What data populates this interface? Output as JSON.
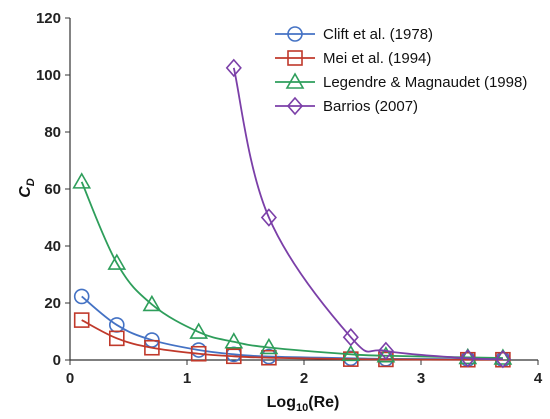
{
  "chart_data": {
    "type": "line",
    "title": "",
    "xlabel": {
      "main": "Log",
      "sub": "10",
      "rest": "(Re)"
    },
    "ylabel": {
      "main": "C",
      "sub": "D"
    },
    "xlim": [
      0,
      4
    ],
    "ylim": [
      0,
      120
    ],
    "xticks": [
      "0",
      "1",
      "2",
      "3",
      "4"
    ],
    "yticks": [
      "0",
      "20",
      "40",
      "60",
      "80",
      "100",
      "120"
    ],
    "grid": false,
    "legend_position": "top-right",
    "series": [
      {
        "name": "Clift et al. (1978)",
        "marker": "circle",
        "color": "#4472C4",
        "x": [
          0.1,
          0.4,
          0.7,
          1.1,
          1.4,
          1.7,
          2.4,
          2.7,
          3.4,
          3.7
        ],
        "y": [
          22.3,
          12.3,
          7.0,
          3.5,
          2.0,
          1.2,
          0.6,
          0.4,
          0.3,
          0.2
        ]
      },
      {
        "name": "Mei et al. (1994)",
        "marker": "square",
        "color": "#C0392B",
        "x": [
          0.1,
          0.4,
          0.7,
          1.1,
          1.4,
          1.7,
          2.4,
          2.7,
          3.4,
          3.7
        ],
        "y": [
          14.0,
          7.6,
          4.3,
          2.2,
          1.3,
          0.8,
          0.3,
          0.2,
          0.1,
          0.1
        ]
      },
      {
        "name": "Legendre & Magnaudet (1998)",
        "marker": "triangle",
        "color": "#2E9E5B",
        "x": [
          0.1,
          0.4,
          0.7,
          1.1,
          1.4,
          1.7,
          2.4,
          2.7,
          3.4,
          3.7
        ],
        "y": [
          62.5,
          34.0,
          19.5,
          9.8,
          6.4,
          4.4,
          2.0,
          1.5,
          0.9,
          0.7
        ]
      },
      {
        "name": "Barrios (2007)",
        "marker": "diamond",
        "color": "#7B3FA8",
        "x": [
          1.4,
          1.7,
          2.4,
          2.7,
          3.4,
          3.7
        ],
        "y": [
          102.5,
          50.0,
          8.0,
          3.2,
          0.6,
          0.3
        ]
      }
    ]
  }
}
